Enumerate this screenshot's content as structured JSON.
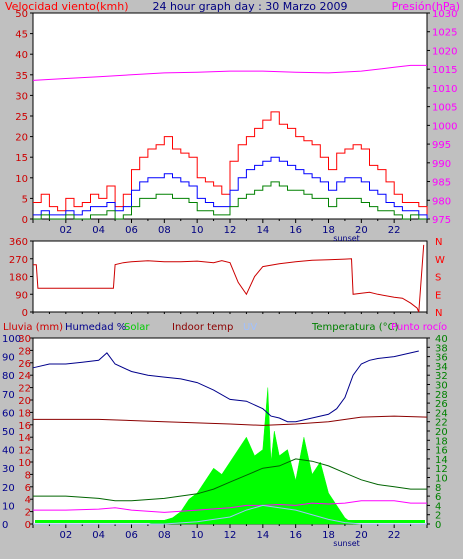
{
  "header": {
    "left_title": "Velocidad viento(kmh)",
    "center_title": "24 hour graph day : 30 Marzo 2009",
    "right_title": "Presión(hPa)"
  },
  "bottom_header": {
    "lluvia": "Lluvia (mm)",
    "humedad": "Humedad %",
    "solar": "Solar",
    "indoor": "Indoor temp",
    "uv": "UV",
    "temperatura": "Temperatura (°C)",
    "punto_rocio": "Punto rocío"
  },
  "colors": {
    "background": "#c0c0c0",
    "plot_bg": "#ffffff",
    "gust": "#ff0000",
    "wind_avg": "#0000ff",
    "wind_low": "#008000",
    "pressure": "#ff00ff",
    "direction": "#cc0000",
    "humidity": "#00008b",
    "solar": "#00ff00",
    "indoor": "#8b0000",
    "uv": "#a0c0ff",
    "temperature": "#006400",
    "dew_point": "#ff00ff",
    "lluvia_label": "#cc0000",
    "left_ticks": "#cc0000",
    "humidity_label": "#00008b",
    "solar_label": "#00cc00",
    "temp_label": "#008000",
    "dew_label": "#ff00ff"
  },
  "chart_data": [
    {
      "type": "line",
      "title": "24 hour graph day : 30 Marzo 2009",
      "ylabel": "Velocidad viento(kmh)",
      "y2label": "Presión(hPa)",
      "x_ticks": [
        "02",
        "04",
        "06",
        "08",
        "10",
        "12",
        "14",
        "16",
        "18",
        "20",
        "22"
      ],
      "x_extra_label": "sunset",
      "xlim": [
        0,
        24
      ],
      "ylim": [
        0,
        50
      ],
      "y_ticks": [
        0,
        5,
        10,
        15,
        20,
        25,
        30,
        35,
        40,
        45,
        50
      ],
      "y2lim": [
        975,
        1030
      ],
      "y2_ticks": [
        975,
        980,
        985,
        990,
        995,
        1000,
        1005,
        1010,
        1015,
        1020,
        1025,
        1030
      ],
      "series": [
        {
          "name": "Velocidad viento",
          "role": "gust",
          "x": [
            0,
            0.5,
            1,
            1.5,
            2,
            2.5,
            3,
            3.5,
            4,
            4.5,
            5,
            5.5,
            6,
            6.5,
            7,
            7.5,
            8,
            8.5,
            9,
            9.5,
            10,
            10.5,
            11,
            11.5,
            12,
            12.5,
            13,
            13.5,
            14,
            14.5,
            15,
            15.5,
            16,
            16.5,
            17,
            17.5,
            18,
            18.5,
            19,
            19.5,
            20,
            20.5,
            21,
            21.5,
            22,
            22.5,
            23,
            23.5,
            24
          ],
          "y": [
            4,
            6,
            3,
            2,
            5,
            3,
            4,
            6,
            5,
            8,
            3,
            6,
            12,
            15,
            17,
            18,
            20,
            17,
            16,
            15,
            10,
            9,
            8,
            6,
            14,
            18,
            20,
            22,
            24,
            26,
            23,
            22,
            20,
            19,
            18,
            15,
            12,
            16,
            17,
            18,
            17,
            13,
            12,
            9,
            6,
            4,
            4,
            3,
            0
          ]
        },
        {
          "role": "average",
          "x": [
            0,
            0.5,
            1,
            1.5,
            2,
            2.5,
            3,
            3.5,
            4,
            4.5,
            5,
            5.5,
            6,
            6.5,
            7,
            7.5,
            8,
            8.5,
            9,
            9.5,
            10,
            10.5,
            11,
            11.5,
            12,
            12.5,
            13,
            13.5,
            14,
            14.5,
            15,
            15.5,
            16,
            16.5,
            17,
            17.5,
            18,
            18.5,
            19,
            19.5,
            20,
            20.5,
            21,
            21.5,
            22,
            22.5,
            23,
            23.5,
            24
          ],
          "y": [
            1,
            2,
            1,
            1,
            2,
            1,
            2,
            3,
            3,
            4,
            2,
            3,
            7,
            9,
            10,
            10,
            11,
            10,
            9,
            8,
            5,
            4,
            3,
            3,
            7,
            10,
            12,
            13,
            14,
            15,
            14,
            13,
            12,
            11,
            10,
            9,
            7,
            9,
            10,
            10,
            9,
            7,
            6,
            4,
            3,
            2,
            2,
            1,
            0
          ]
        },
        {
          "role": "low",
          "x": [
            0,
            0.5,
            1,
            1.5,
            2,
            2.5,
            3,
            3.5,
            4,
            4.5,
            5,
            5.5,
            6,
            6.5,
            7,
            7.5,
            8,
            8.5,
            9,
            9.5,
            10,
            10.5,
            11,
            11.5,
            12,
            12.5,
            13,
            13.5,
            14,
            14.5,
            15,
            15.5,
            16,
            16.5,
            17,
            17.5,
            18,
            18.5,
            19,
            19.5,
            20,
            20.5,
            21,
            21.5,
            22,
            22.5,
            23,
            23.5,
            24
          ],
          "y": [
            0,
            1,
            0,
            0,
            1,
            0,
            0,
            1,
            1,
            2,
            0,
            1,
            3,
            5,
            5,
            6,
            6,
            5,
            5,
            4,
            2,
            2,
            1,
            1,
            3,
            5,
            6,
            7,
            8,
            9,
            8,
            7,
            7,
            6,
            5,
            5,
            3,
            5,
            5,
            5,
            4,
            3,
            2,
            2,
            1,
            0,
            1,
            0,
            0
          ]
        },
        {
          "name": "Presión",
          "role": "pressure",
          "axis": "right",
          "x": [
            0,
            2,
            4,
            6,
            8,
            10,
            12,
            14,
            16,
            18,
            20,
            22,
            23,
            24
          ],
          "y": [
            1012,
            1012.5,
            1013,
            1013.5,
            1014,
            1014.2,
            1014.5,
            1014.5,
            1014.2,
            1014,
            1014.5,
            1015.5,
            1016,
            1016
          ]
        }
      ]
    },
    {
      "type": "line",
      "ylim": [
        0,
        360
      ],
      "y_ticks": [
        0,
        90,
        180,
        270,
        360
      ],
      "y2_labels": [
        "N",
        "W",
        "S",
        "E",
        "N"
      ],
      "xlim": [
        0,
        24
      ],
      "series": [
        {
          "role": "direction",
          "x": [
            0,
            0.2,
            0.3,
            2,
            4.9,
            5,
            5.5,
            6,
            7,
            8,
            9,
            10,
            11,
            11.5,
            12,
            12.5,
            13,
            13.5,
            14,
            15,
            16,
            17,
            18,
            19,
            19.4,
            19.5,
            20,
            20.5,
            21,
            22,
            22.5,
            23,
            23.4,
            23.5,
            23.8
          ],
          "y": [
            240,
            240,
            120,
            120,
            120,
            240,
            250,
            255,
            260,
            255,
            255,
            258,
            250,
            260,
            250,
            150,
            90,
            180,
            230,
            245,
            255,
            262,
            265,
            268,
            270,
            90,
            95,
            100,
            90,
            75,
            70,
            45,
            20,
            0,
            340
          ]
        }
      ]
    },
    {
      "type": "line",
      "ylabel": "Lluvia (mm)",
      "y2label": "Temperatura (°C)",
      "ylim": [
        0,
        30
      ],
      "y_ticks": [
        0,
        2,
        4,
        6,
        8,
        10,
        12,
        14,
        16,
        18,
        20,
        22,
        24,
        26,
        28,
        30
      ],
      "humidity_ticks": [
        0,
        10,
        20,
        30,
        40,
        50,
        60,
        70,
        80,
        90,
        100
      ],
      "y2lim": [
        0,
        40
      ],
      "y2_ticks": [
        0,
        2,
        4,
        6,
        8,
        10,
        12,
        14,
        16,
        18,
        20,
        22,
        24,
        26,
        28,
        30,
        32,
        34,
        36,
        38,
        40
      ],
      "x_ticks": [
        "02",
        "04",
        "06",
        "08",
        "10",
        "12",
        "14",
        "16",
        "18",
        "20",
        "22"
      ],
      "x_extra_label": "sunset",
      "xlim": [
        0,
        24
      ],
      "series": [
        {
          "name": "Humedad",
          "role": "humidity",
          "axis": "humidity",
          "x": [
            0,
            1,
            2,
            3,
            4,
            4.5,
            5,
            6,
            7,
            8,
            9,
            10,
            11,
            12,
            13,
            14,
            14.5,
            15,
            15.5,
            16,
            17,
            18,
            18.5,
            19,
            19.5,
            20,
            20.5,
            21,
            22,
            23,
            23.5
          ],
          "y": [
            84,
            86,
            86,
            87,
            88,
            92,
            86,
            82,
            80,
            79,
            78,
            76,
            72,
            67,
            66,
            62,
            58,
            57,
            55,
            55,
            57,
            59,
            62,
            68,
            80,
            86,
            88,
            89,
            90,
            92,
            93
          ]
        },
        {
          "name": "Solar",
          "role": "solar",
          "type": "area",
          "x": [
            0,
            7,
            7.5,
            8,
            8.5,
            9,
            9.5,
            10,
            10.5,
            11,
            11.5,
            12,
            12.5,
            13,
            13.5,
            14,
            14.3,
            14.5,
            14.7,
            15,
            15.5,
            16,
            16.5,
            17,
            17.5,
            18,
            18.5,
            19,
            19.5,
            24
          ],
          "y": [
            0,
            0,
            0.3,
            0.6,
            1,
            2,
            4,
            5,
            7,
            9,
            8,
            10,
            12,
            14,
            11,
            12,
            22,
            10,
            15,
            11,
            12,
            7,
            14,
            8,
            10,
            5,
            3,
            1,
            0,
            0
          ]
        },
        {
          "name": "Indoor temp",
          "role": "indoor",
          "axis": "right",
          "x": [
            0,
            4,
            8,
            12,
            14,
            16,
            18,
            20,
            22,
            24
          ],
          "y": [
            22.5,
            22.5,
            22,
            21.5,
            21.2,
            21.5,
            22,
            23,
            23.2,
            23
          ]
        },
        {
          "name": "Temperatura",
          "role": "temperature",
          "axis": "right",
          "x": [
            0,
            2,
            4,
            5,
            6,
            8,
            10,
            11,
            12,
            13,
            14,
            15,
            16,
            17,
            18,
            19,
            20,
            21,
            22,
            23,
            24
          ],
          "y": [
            6,
            6,
            5.5,
            5,
            5,
            5.5,
            6.5,
            7.5,
            9,
            10.5,
            12,
            12.5,
            14,
            13.5,
            12.5,
            11,
            9.5,
            8.5,
            8,
            7.5,
            7.5
          ]
        },
        {
          "name": "Punto rocío",
          "role": "dew_point",
          "axis": "right",
          "x": [
            0,
            2,
            4,
            5,
            6,
            8,
            10,
            12,
            13,
            14,
            15,
            16,
            17,
            18,
            19,
            20,
            21,
            22,
            23,
            24
          ],
          "y": [
            3,
            3,
            3.2,
            3.5,
            3,
            2.5,
            3,
            3.5,
            4,
            4,
            4.2,
            4,
            4.5,
            4.3,
            4.5,
            5,
            5,
            5,
            4.5,
            4.5
          ]
        },
        {
          "name": "UV",
          "role": "uv",
          "axis": "right",
          "x": [
            0,
            8,
            10,
            12,
            13,
            14,
            15,
            16,
            18,
            19,
            20,
            24
          ],
          "y": [
            0,
            0,
            0.5,
            1.5,
            3,
            4,
            3.5,
            3,
            1,
            0.3,
            0,
            0
          ]
        }
      ]
    }
  ]
}
